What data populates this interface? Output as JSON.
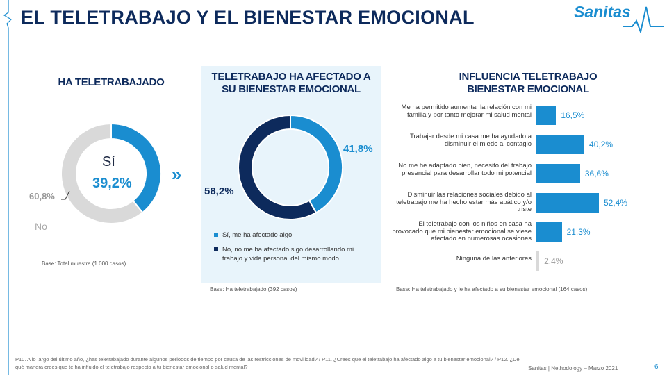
{
  "header": {
    "title": "EL TELETRABAJO Y EL BIENESTAR EMOCIONAL",
    "logo_text": "Sanitas"
  },
  "colors": {
    "accent": "#1a8dd0",
    "dark": "#0d2a5c",
    "grey": "#d9d9d9",
    "panel": "#e8f4fb"
  },
  "chart_data": [
    {
      "type": "pie",
      "title": "HA TELETRABAJADO",
      "slices": [
        {
          "label": "Sí",
          "value": 39.2,
          "display": "39,2%",
          "color": "#1a8dd0"
        },
        {
          "label": "No",
          "value": 60.8,
          "display": "60,8%",
          "color": "#d9d9d9"
        }
      ],
      "base": "Base: Total muestra (1.000 casos)"
    },
    {
      "type": "pie",
      "title_line1": "TELETRABAJO HA AFECTADO A",
      "title_line2": "SU BIENESTAR EMOCIONAL",
      "slices": [
        {
          "label": "Sí, me ha afectado algo",
          "value": 41.8,
          "display": "41,8%",
          "color": "#1a8dd0"
        },
        {
          "label": "No, no me ha afectado sigo desarrollando mi trabajo y vida personal del mismo modo",
          "value": 58.2,
          "display": "58,2%",
          "color": "#0d2a5c"
        }
      ],
      "base": "Base: Ha teletrabajado (392 casos)"
    },
    {
      "type": "bar",
      "orientation": "horizontal",
      "title_line1": "INFLUENCIA TELETRABAJO",
      "title_line2": "BIENESTAR EMOCIONAL",
      "categories": [
        "Me ha permitido aumentar la relación con mi familia y por tanto mejorar mi salud mental",
        "Trabajar desde mi casa me ha ayudado a disminuir el miedo al contagio",
        "No me he adaptado bien, necesito del trabajo presencial para desarrollar todo mi potencial",
        "Disminuir las relaciones sociales debido al teletrabajo me ha hecho estar más apático y/o triste",
        "El teletrabajo con los niños en casa ha provocado que mi bienestar emocional se viese afectado en numerosas ocasiones",
        "Ninguna de las anteriores"
      ],
      "values": [
        16.5,
        40.2,
        36.6,
        52.4,
        21.3,
        2.4
      ],
      "value_labels": [
        "16,5%",
        "40,2%",
        "36,6%",
        "52,4%",
        "21,3%",
        "2,4%"
      ],
      "colors": [
        "#1a8dd0",
        "#1a8dd0",
        "#1a8dd0",
        "#1a8dd0",
        "#1a8dd0",
        "#d9d9d9"
      ],
      "xlim": [
        0,
        100
      ],
      "base": "Base: Ha teletrabajado y le ha afectado a su bienestar emocional (164 casos)"
    }
  ],
  "footer": {
    "question": "P10. A lo largo del último año, ¿has teletrabajado durante algunos periodos de tiempo por causa de las restricciones de movilidad? / P11. ¿Crees que el teletrabajo ha afectado algo a tu bienestar emocional? / P12. ¿De qué manera crees que te ha influido el teletrabajo respecto a tu bienestar emocional o salud mental?",
    "source": "Sanitas | Nethodology – Marzo 2021",
    "page": "6"
  }
}
